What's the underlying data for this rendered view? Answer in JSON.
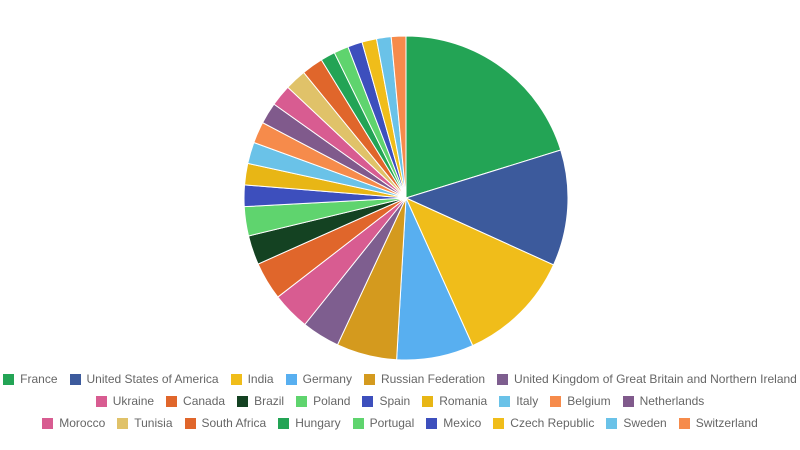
{
  "chart_data": {
    "type": "pie",
    "legend_position": "bottom",
    "start_angle": "top, clockwise",
    "slices": [
      {
        "label": "France",
        "value": 20.8,
        "color": "#23a455"
      },
      {
        "label": "United States of America",
        "value": 11.9,
        "color": "#3c5a9c"
      },
      {
        "label": "India",
        "value": 11.8,
        "color": "#f0bd1a"
      },
      {
        "label": "Germany",
        "value": 7.9,
        "color": "#58aff0"
      },
      {
        "label": "Russian Federation",
        "value": 6.2,
        "color": "#d49a1e"
      },
      {
        "label": "United Kingdom of Great Britain and Northern Ireland",
        "value": 3.9,
        "color": "#7e5e8f"
      },
      {
        "label": "Ukraine",
        "value": 3.9,
        "color": "#d85c91"
      },
      {
        "label": "Canada",
        "value": 3.9,
        "color": "#e0662b"
      },
      {
        "label": "Brazil",
        "value": 3.0,
        "color": "#144222"
      },
      {
        "label": "Poland",
        "value": 3.0,
        "color": "#5fd46e"
      },
      {
        "label": "Spain",
        "value": 2.2,
        "color": "#3d4fbd"
      },
      {
        "label": "Romania",
        "value": 2.2,
        "color": "#e8b615"
      },
      {
        "label": "Italy",
        "value": 2.2,
        "color": "#6ac2e8"
      },
      {
        "label": "Belgium",
        "value": 2.2,
        "color": "#f68b4b"
      },
      {
        "label": "Netherlands",
        "value": 2.2,
        "color": "#805a8c"
      },
      {
        "label": "Morocco",
        "value": 2.2,
        "color": "#d85c91"
      },
      {
        "label": "Tunisia",
        "value": 2.2,
        "color": "#e0c269"
      },
      {
        "label": "South Africa",
        "value": 2.2,
        "color": "#e0662b"
      },
      {
        "label": "Hungary",
        "value": 1.5,
        "color": "#23a455"
      },
      {
        "label": "Portugal",
        "value": 1.5,
        "color": "#5fd46e"
      },
      {
        "label": "Mexico",
        "value": 1.5,
        "color": "#3d4fbd"
      },
      {
        "label": "Czech Republic",
        "value": 1.5,
        "color": "#f0bd1a"
      },
      {
        "label": "Sweden",
        "value": 1.5,
        "color": "#6ac2e8"
      },
      {
        "label": "Switzerland",
        "value": 1.5,
        "color": "#f68b4b"
      }
    ]
  }
}
